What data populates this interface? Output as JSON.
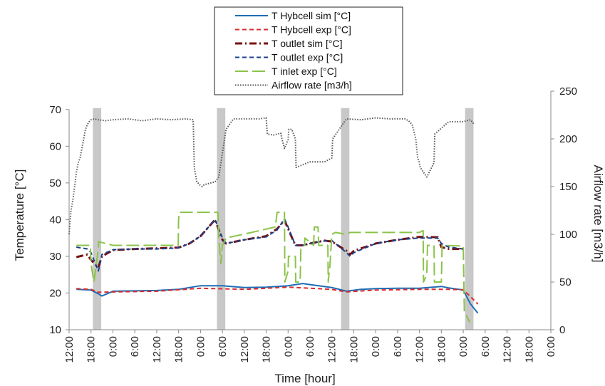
{
  "chart_data": {
    "type": "line",
    "title": "",
    "xlabel": "Time [hour]",
    "ylabel": "Temperature [°C]",
    "y2label": "Airflow rate [m3/h]",
    "x_unit": "hours",
    "xlim": [
      0,
      132
    ],
    "ylim": [
      10,
      75
    ],
    "y2lim": [
      0,
      250
    ],
    "x_tick_values": [
      0,
      6,
      12,
      18,
      24,
      30,
      36,
      42,
      48,
      54,
      60,
      66,
      72,
      78,
      84,
      90,
      96,
      102,
      108,
      114,
      120,
      126,
      132
    ],
    "x_tick_labels": [
      "12:00",
      "18:00",
      "0:00",
      "6:00",
      "12:00",
      "18:00",
      "0:00",
      "6:00",
      "12:00",
      "18:00",
      "0:00",
      "6:00",
      "12:00",
      "18:00",
      "0:00",
      "6:00",
      "12:00",
      "18:00",
      "0:00",
      "6:00",
      "12:00",
      "18:00",
      "0:00"
    ],
    "y_ticks": [
      10,
      20,
      30,
      40,
      50,
      60,
      70
    ],
    "y2_ticks": [
      0,
      50,
      100,
      150,
      200,
      250
    ],
    "grid": false,
    "legend_position": "top-center",
    "shaded_periods": [
      [
        6.5,
        8.8
      ],
      [
        40.5,
        42.8
      ],
      [
        74.5,
        76.8
      ],
      [
        108.5,
        110.8
      ]
    ],
    "series": [
      {
        "name": "T Hybcell sim [°C]",
        "axis": "left",
        "color": "#1f6db5",
        "dash": "solid",
        "x": [
          2,
          6,
          8,
          9,
          12,
          18,
          24,
          30,
          36,
          42,
          48,
          54,
          60,
          64,
          66,
          72,
          76,
          80,
          84,
          90,
          96,
          102,
          104,
          108,
          110,
          112
        ],
        "y": [
          21.0,
          20.8,
          19.8,
          19.2,
          20.5,
          20.6,
          20.7,
          21.0,
          22.0,
          22.0,
          21.5,
          21.6,
          22.0,
          22.6,
          22.3,
          21.5,
          20.5,
          21.0,
          21.2,
          21.3,
          21.3,
          21.8,
          21.4,
          20.8,
          17.0,
          14.5
        ]
      },
      {
        "name": "T Hybcell exp [°C]",
        "axis": "left",
        "color": "#d62d2d",
        "dash": "dashed",
        "x": [
          2,
          6,
          8,
          12,
          24,
          36,
          48,
          60,
          72,
          76,
          84,
          96,
          104,
          108,
          110,
          112
        ],
        "y": [
          21.2,
          21.0,
          20.2,
          20.3,
          20.5,
          21.3,
          21.0,
          21.6,
          21.0,
          20.3,
          20.8,
          21.0,
          21.0,
          20.9,
          19.0,
          17.0
        ]
      },
      {
        "name": "T outlet sim [°C]",
        "axis": "left",
        "color": "#7a1010",
        "dash": "dash-dot",
        "x": [
          2,
          5,
          6,
          8,
          9,
          12,
          18,
          24,
          30,
          33,
          36,
          40,
          42,
          43,
          48,
          54,
          57,
          59,
          60,
          62,
          64,
          66,
          70,
          72,
          76,
          77,
          78,
          84,
          90,
          96,
          101,
          102,
          104,
          108
        ],
        "y": [
          29.8,
          30.5,
          29.0,
          27.0,
          30.0,
          31.7,
          32.0,
          32.2,
          32.4,
          33.5,
          35.5,
          40.0,
          34.5,
          33.5,
          34.5,
          35.5,
          37.5,
          39.8,
          37.5,
          33.0,
          33.0,
          33.5,
          34.3,
          34.0,
          31.5,
          30.5,
          31.5,
          33.5,
          34.5,
          35.3,
          35.2,
          32.5,
          32.0,
          32.0
        ]
      },
      {
        "name": "T outlet exp [°C]",
        "axis": "left",
        "color": "#1a3f8a",
        "dash": "dashed",
        "x": [
          2,
          5,
          6,
          8,
          9,
          12,
          18,
          24,
          30,
          33,
          36,
          40,
          42,
          43,
          48,
          54,
          57,
          59,
          60,
          62,
          64,
          66,
          70,
          72,
          76,
          77,
          78,
          84,
          90,
          96,
          101,
          102,
          104,
          108
        ],
        "y": [
          32.5,
          32.0,
          31.0,
          26.0,
          30.5,
          31.8,
          32.0,
          32.0,
          32.3,
          33.5,
          35.5,
          40.0,
          35.0,
          33.5,
          34.5,
          35.3,
          37.2,
          40.2,
          38.0,
          33.0,
          33.0,
          33.5,
          34.2,
          34.3,
          31.0,
          30.0,
          31.0,
          33.5,
          34.5,
          35.0,
          35.0,
          33.5,
          32.5,
          32.0
        ]
      },
      {
        "name": "T inlet exp [°C]",
        "axis": "left",
        "color": "#8bc34a",
        "dash": "long-dash",
        "x": [
          2,
          5.8,
          6.0,
          6.8,
          8.0,
          8.1,
          12,
          18,
          24,
          29.9,
          30.0,
          30.2,
          34,
          40.8,
          41.0,
          41.6,
          42,
          43,
          50,
          56.5,
          57,
          59,
          59.1,
          60,
          60.1,
          62,
          62.1,
          63.3,
          63.5,
          64.5,
          64.6,
          67,
          67.2,
          68.2,
          68.4,
          70.9,
          71.0,
          71.5,
          72,
          73,
          76,
          77,
          84,
          90,
          96,
          97,
          97.1,
          98,
          98.2,
          100,
          100.1,
          102,
          102.2,
          108,
          108.3,
          109.8
        ],
        "y": [
          33,
          33,
          28,
          23,
          32,
          34,
          33,
          33,
          33,
          33,
          40,
          42,
          42,
          42,
          35,
          28,
          33,
          35,
          36.5,
          38,
          42,
          42,
          23,
          26,
          30,
          30,
          23,
          23,
          32,
          33,
          35,
          33,
          38,
          38,
          33,
          33,
          23,
          28,
          36,
          36.5,
          36,
          36.5,
          36.5,
          36.5,
          36.5,
          37,
          23,
          25,
          33,
          33,
          23,
          23,
          33,
          32.8,
          15,
          12
        ]
      },
      {
        "name": "Airflow rate [m3/h]",
        "axis": "right",
        "color": "#555555",
        "dash": "dotted",
        "x": [
          0,
          0.5,
          1,
          1.5,
          2,
          2.5,
          3,
          3.5,
          4,
          4.5,
          5,
          5.5,
          6,
          7,
          8,
          10,
          12,
          16,
          20,
          24,
          28,
          32,
          34,
          34.3,
          35,
          36,
          36.5,
          37,
          38,
          40,
          41,
          42,
          43,
          45,
          48,
          50,
          52,
          54,
          54.3,
          56,
          57,
          58,
          58.3,
          59,
          60,
          60.2,
          61,
          62,
          62.2,
          66,
          70,
          72,
          72.2,
          76,
          80,
          84,
          88,
          92,
          93,
          94,
          95,
          95.5,
          96,
          96.2,
          98,
          100,
          100.2,
          104,
          108,
          110,
          111
        ],
        "y": [
          100,
          125,
          135,
          150,
          165,
          175,
          180,
          190,
          200,
          210,
          215,
          218,
          220,
          221,
          220,
          219,
          220,
          221,
          219,
          221,
          220,
          221,
          220,
          170,
          155,
          151,
          150,
          152,
          153,
          155,
          160,
          185,
          210,
          221,
          221,
          221,
          221,
          222,
          205,
          204,
          205,
          206,
          200,
          190,
          199,
          210,
          210,
          200,
          170,
          176,
          176,
          180,
          200,
          221,
          220,
          222,
          221,
          221,
          219,
          215,
          200,
          180,
          175,
          170,
          160,
          175,
          205,
          218,
          218,
          220,
          215
        ]
      }
    ]
  }
}
